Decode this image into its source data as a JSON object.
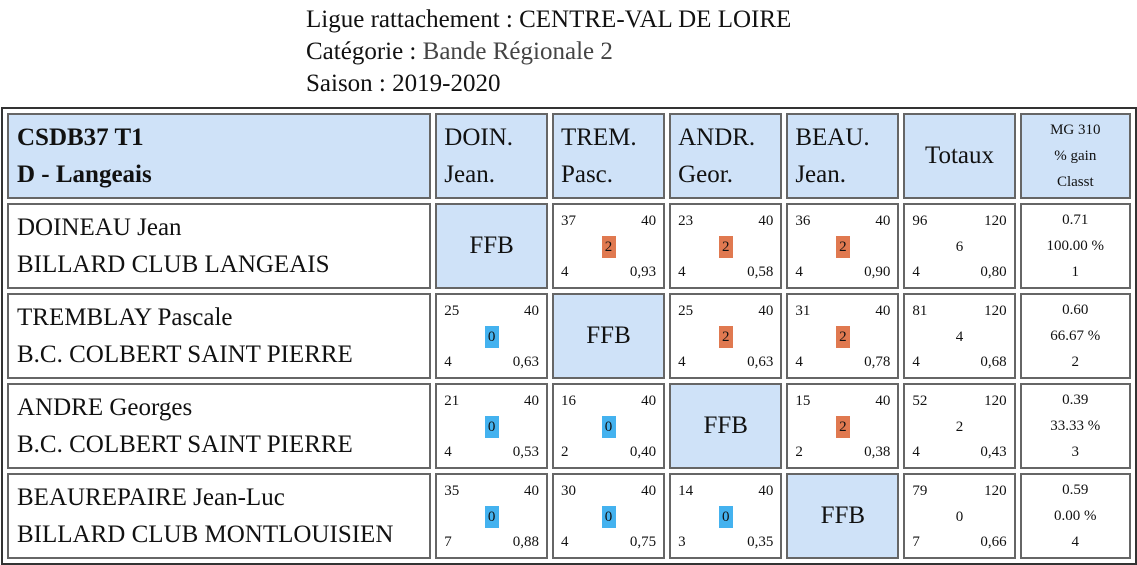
{
  "header": {
    "ligue_label": "Ligue rattachement :",
    "ligue_value": "CENTRE-VAL DE LOIRE",
    "categorie_label": "Catégorie :",
    "categorie_value": "Bande Régionale 2",
    "saison_label": "Saison :",
    "saison_value": "2019-2020"
  },
  "table": {
    "team_line1": "CSDB37 T1",
    "team_line2": "D - Langeais",
    "columns": [
      {
        "line1": "DOIN.",
        "line2": "Jean."
      },
      {
        "line1": "TREM.",
        "line2": "Pasc."
      },
      {
        "line1": "ANDR.",
        "line2": "Geor."
      },
      {
        "line1": "BEAU.",
        "line2": "Jean."
      }
    ],
    "totaux_label": "Totaux",
    "mg_label_1": "MG 310",
    "mg_label_2": "% gain",
    "mg_label_3": "Classt",
    "ffb_label": "FFB",
    "colors": {
      "win": "#e07950",
      "loss": "#44b2ef",
      "header_bg": "#cfe2f8"
    },
    "rows": [
      {
        "name": "DOINEAU Jean",
        "club": "BILLARD CLUB LANGEAIS",
        "cells": [
          null,
          {
            "score": "37",
            "target": "40",
            "pts": "2",
            "innings": "4",
            "avg": "0,93"
          },
          {
            "score": "23",
            "target": "40",
            "pts": "2",
            "innings": "4",
            "avg": "0,58"
          },
          {
            "score": "36",
            "target": "40",
            "pts": "2",
            "innings": "4",
            "avg": "0,90"
          }
        ],
        "total": {
          "score": "96",
          "target": "120",
          "pts": "6",
          "innings": "4",
          "avg": "0,80"
        },
        "mg": "0.71",
        "gain": "100.00 %",
        "rank": "1"
      },
      {
        "name": "TREMBLAY Pascale",
        "club": "B.C. COLBERT SAINT PIERRE",
        "cells": [
          {
            "score": "25",
            "target": "40",
            "pts": "0",
            "innings": "4",
            "avg": "0,63"
          },
          null,
          {
            "score": "25",
            "target": "40",
            "pts": "2",
            "innings": "4",
            "avg": "0,63"
          },
          {
            "score": "31",
            "target": "40",
            "pts": "2",
            "innings": "4",
            "avg": "0,78"
          }
        ],
        "total": {
          "score": "81",
          "target": "120",
          "pts": "4",
          "innings": "4",
          "avg": "0,68"
        },
        "mg": "0.60",
        "gain": "66.67 %",
        "rank": "2"
      },
      {
        "name": "ANDRE Georges",
        "club": "B.C. COLBERT SAINT PIERRE",
        "cells": [
          {
            "score": "21",
            "target": "40",
            "pts": "0",
            "innings": "4",
            "avg": "0,53"
          },
          {
            "score": "16",
            "target": "40",
            "pts": "0",
            "innings": "2",
            "avg": "0,40"
          },
          null,
          {
            "score": "15",
            "target": "40",
            "pts": "2",
            "innings": "2",
            "avg": "0,38"
          }
        ],
        "total": {
          "score": "52",
          "target": "120",
          "pts": "2",
          "innings": "4",
          "avg": "0,43"
        },
        "mg": "0.39",
        "gain": "33.33 %",
        "rank": "3"
      },
      {
        "name": "BEAUREPAIRE Jean-Luc",
        "club": "BILLARD CLUB MONTLOUISIEN",
        "cells": [
          {
            "score": "35",
            "target": "40",
            "pts": "0",
            "innings": "7",
            "avg": "0,88"
          },
          {
            "score": "30",
            "target": "40",
            "pts": "0",
            "innings": "4",
            "avg": "0,75"
          },
          {
            "score": "14",
            "target": "40",
            "pts": "0",
            "innings": "3",
            "avg": "0,35"
          },
          null
        ],
        "total": {
          "score": "79",
          "target": "120",
          "pts": "0",
          "innings": "7",
          "avg": "0,66"
        },
        "mg": "0.59",
        "gain": "0.00 %",
        "rank": "4"
      }
    ]
  }
}
